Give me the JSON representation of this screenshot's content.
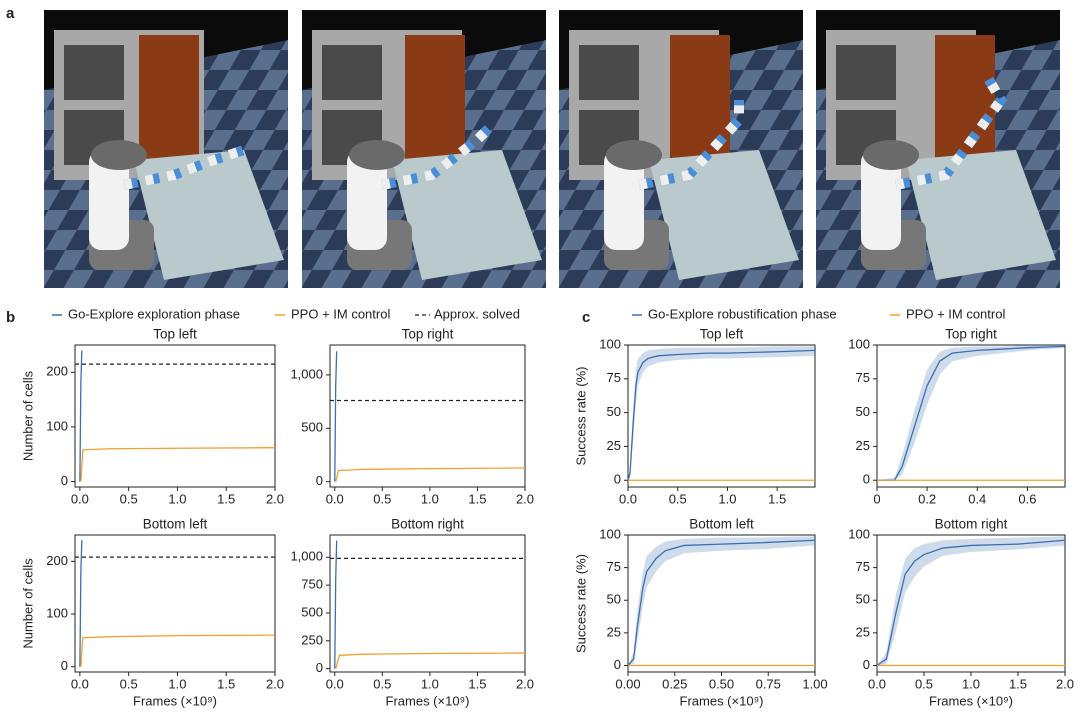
{
  "panel_labels": [
    "a",
    "b",
    "c"
  ],
  "chart_data": [
    {
      "type": "line",
      "title": "Top left",
      "y_label": "Number of cells",
      "xlim": [
        -0.05,
        2.0
      ],
      "xticks": [
        {
          "value": 0,
          "label": "0.0"
        },
        0.5,
        {
          "value": 1,
          "label": "1.0"
        },
        1.5,
        {
          "value": 2,
          "label": "2.0"
        }
      ],
      "ylim": [
        -10,
        250
      ],
      "yticks": [
        0,
        100,
        200
      ],
      "reference_line": {
        "name": "Approx. solved",
        "value": 215
      },
      "series": [
        {
          "name": "Go-Explore exploration phase",
          "color": "#3a6fb0",
          "x": [
            0,
            0.01,
            0.02
          ],
          "values": [
            0,
            180,
            240
          ]
        },
        {
          "name": "PPO + IM control",
          "color": "#f2a12c",
          "x": [
            0.01,
            0.03,
            0.3,
            1.0,
            2.0
          ],
          "values": [
            0,
            58,
            60,
            61,
            62
          ]
        }
      ]
    },
    {
      "type": "line",
      "title": "Top right",
      "xlim": [
        -0.05,
        2.0
      ],
      "xticks": [
        {
          "value": 0,
          "label": "0.0"
        },
        0.5,
        {
          "value": 1,
          "label": "1.0"
        },
        1.5,
        {
          "value": 2,
          "label": "2.0"
        }
      ],
      "ylim": [
        -50,
        1280
      ],
      "yticks": [
        0,
        500,
        {
          "value": 1000,
          "label": "1,000"
        }
      ],
      "reference_line": {
        "value": 760
      },
      "series": [
        {
          "color": "#3a6fb0",
          "x": [
            0,
            0.01,
            0.02
          ],
          "values": [
            0,
            900,
            1220
          ]
        },
        {
          "color": "#f2a12c",
          "x": [
            0.01,
            0.04,
            0.3,
            1.0,
            2.0
          ],
          "values": [
            0,
            105,
            115,
            122,
            128
          ]
        }
      ]
    },
    {
      "type": "line",
      "title": "Bottom left",
      "y_label": "Number of cells",
      "x_label": "Frames (×10⁹)",
      "xlim": [
        -0.05,
        2.0
      ],
      "xticks": [
        {
          "value": 0,
          "label": "0.0"
        },
        0.5,
        {
          "value": 1,
          "label": "1.0"
        },
        1.5,
        {
          "value": 2,
          "label": "2.0"
        }
      ],
      "ylim": [
        -10,
        250
      ],
      "yticks": [
        0,
        100,
        200
      ],
      "reference_line": {
        "value": 208
      },
      "series": [
        {
          "color": "#3a6fb0",
          "x": [
            0,
            0.01,
            0.02
          ],
          "values": [
            0,
            180,
            240
          ]
        },
        {
          "color": "#f2a12c",
          "x": [
            0.01,
            0.03,
            0.3,
            1.0,
            2.0
          ],
          "values": [
            0,
            55,
            57,
            59,
            60
          ]
        }
      ]
    },
    {
      "type": "line",
      "title": "Bottom right",
      "x_label": "Frames (×10⁹)",
      "xlim": [
        -0.05,
        2.0
      ],
      "xticks": [
        {
          "value": 0,
          "label": "0.0"
        },
        0.5,
        {
          "value": 1,
          "label": "1.0"
        },
        1.5,
        {
          "value": 2,
          "label": "2.0"
        }
      ],
      "ylim": [
        -30,
        1200
      ],
      "yticks": [
        0,
        250,
        500,
        750,
        {
          "value": 1000,
          "label": "1,000"
        }
      ],
      "reference_line": {
        "value": 990
      },
      "series": [
        {
          "color": "#3a6fb0",
          "x": [
            0,
            0.01,
            0.02
          ],
          "values": [
            0,
            800,
            1150
          ]
        },
        {
          "color": "#f2a12c",
          "x": [
            0.01,
            0.05,
            0.3,
            1.0,
            2.0
          ],
          "values": [
            0,
            120,
            130,
            136,
            140
          ]
        }
      ]
    },
    {
      "type": "line",
      "title": "Top left",
      "y_label": "Success rate (%)",
      "xlim": [
        0,
        1.88
      ],
      "xticks": [
        {
          "value": 0,
          "label": "0.0"
        },
        0.5,
        {
          "value": 1,
          "label": "1.0"
        },
        1.5
      ],
      "ylim": [
        -5,
        100
      ],
      "yticks": [
        0,
        25,
        50,
        75,
        100
      ],
      "series": [
        {
          "name": "Go-Explore robustification phase",
          "color": "#3a6fb0",
          "x": [
            0,
            0.02,
            0.05,
            0.08,
            0.1,
            0.15,
            0.2,
            0.3,
            0.5,
            0.8,
            1.0,
            1.5,
            1.88
          ],
          "values": [
            0,
            5,
            40,
            70,
            80,
            87,
            90,
            92,
            93,
            94,
            94,
            95,
            96
          ],
          "lower": [
            0,
            1,
            28,
            58,
            70,
            80,
            84,
            87,
            89,
            90,
            90,
            91,
            92
          ],
          "upper": [
            0,
            10,
            52,
            82,
            90,
            94,
            96,
            97,
            98,
            98,
            98,
            99,
            99
          ]
        },
        {
          "name": "PPO + IM control",
          "color": "#f2a12c",
          "x": [
            0,
            1.88
          ],
          "values": [
            0,
            0
          ]
        }
      ]
    },
    {
      "type": "line",
      "title": "Top right",
      "xlim": [
        0,
        0.75
      ],
      "xticks": [
        0,
        0.2,
        0.4,
        0.6
      ],
      "ylim": [
        -5,
        100
      ],
      "yticks": [
        0,
        25,
        50,
        75,
        100
      ],
      "series": [
        {
          "color": "#3a6fb0",
          "x": [
            0,
            0.07,
            0.1,
            0.15,
            0.2,
            0.25,
            0.3,
            0.4,
            0.5,
            0.6,
            0.75
          ],
          "values": [
            0,
            0,
            10,
            40,
            70,
            88,
            94,
            96,
            97,
            98,
            99
          ],
          "lower": [
            0,
            0,
            4,
            28,
            56,
            78,
            88,
            92,
            94,
            96,
            98
          ],
          "upper": [
            0,
            2,
            18,
            52,
            82,
            95,
            98,
            99,
            99,
            100,
            100
          ]
        },
        {
          "color": "#f2a12c",
          "x": [
            0,
            0.75
          ],
          "values": [
            0,
            0
          ]
        }
      ]
    },
    {
      "type": "line",
      "title": "Bottom left",
      "y_label": "Success rate (%)",
      "x_label": "Frames (×10⁹)",
      "xlim": [
        0,
        1.0
      ],
      "xticks": [
        {
          "value": 0,
          "label": "0.00"
        },
        {
          "value": 0.25,
          "label": "0.25"
        },
        {
          "value": 0.5,
          "label": "0.50"
        },
        {
          "value": 0.75,
          "label": "0.75"
        },
        {
          "value": 1,
          "label": "1.00"
        }
      ],
      "ylim": [
        -5,
        100
      ],
      "yticks": [
        0,
        25,
        50,
        75,
        100
      ],
      "series": [
        {
          "color": "#3a6fb0",
          "x": [
            0,
            0.03,
            0.05,
            0.08,
            0.1,
            0.15,
            0.2,
            0.3,
            0.5,
            0.7,
            1.0
          ],
          "values": [
            0,
            5,
            30,
            60,
            72,
            82,
            88,
            92,
            93,
            94,
            96
          ],
          "lower": [
            0,
            1,
            18,
            46,
            60,
            72,
            80,
            86,
            88,
            89,
            92
          ],
          "upper": [
            0,
            10,
            42,
            72,
            84,
            91,
            95,
            97,
            98,
            98,
            99
          ]
        },
        {
          "color": "#f2a12c",
          "x": [
            0,
            1.0
          ],
          "values": [
            0,
            0
          ]
        }
      ]
    },
    {
      "type": "line",
      "title": "Bottom right",
      "x_label": "Frames (×10⁹)",
      "xlim": [
        0,
        2.0
      ],
      "xticks": [
        {
          "value": 0,
          "label": "0.0"
        },
        0.5,
        {
          "value": 1,
          "label": "1.0"
        },
        1.5,
        {
          "value": 2,
          "label": "2.0"
        }
      ],
      "ylim": [
        -5,
        100
      ],
      "yticks": [
        0,
        25,
        50,
        75,
        100
      ],
      "series": [
        {
          "color": "#3a6fb0",
          "x": [
            0,
            0.1,
            0.2,
            0.3,
            0.4,
            0.5,
            0.7,
            1.0,
            1.5,
            2.0
          ],
          "values": [
            0,
            5,
            40,
            70,
            80,
            85,
            90,
            92,
            93,
            96
          ],
          "lower": [
            0,
            1,
            26,
            56,
            68,
            76,
            84,
            87,
            89,
            92
          ],
          "upper": [
            0,
            10,
            54,
            82,
            90,
            93,
            96,
            97,
            98,
            99
          ]
        },
        {
          "color": "#f2a12c",
          "x": [
            0,
            2.0
          ],
          "values": [
            0,
            0
          ]
        }
      ]
    }
  ]
}
